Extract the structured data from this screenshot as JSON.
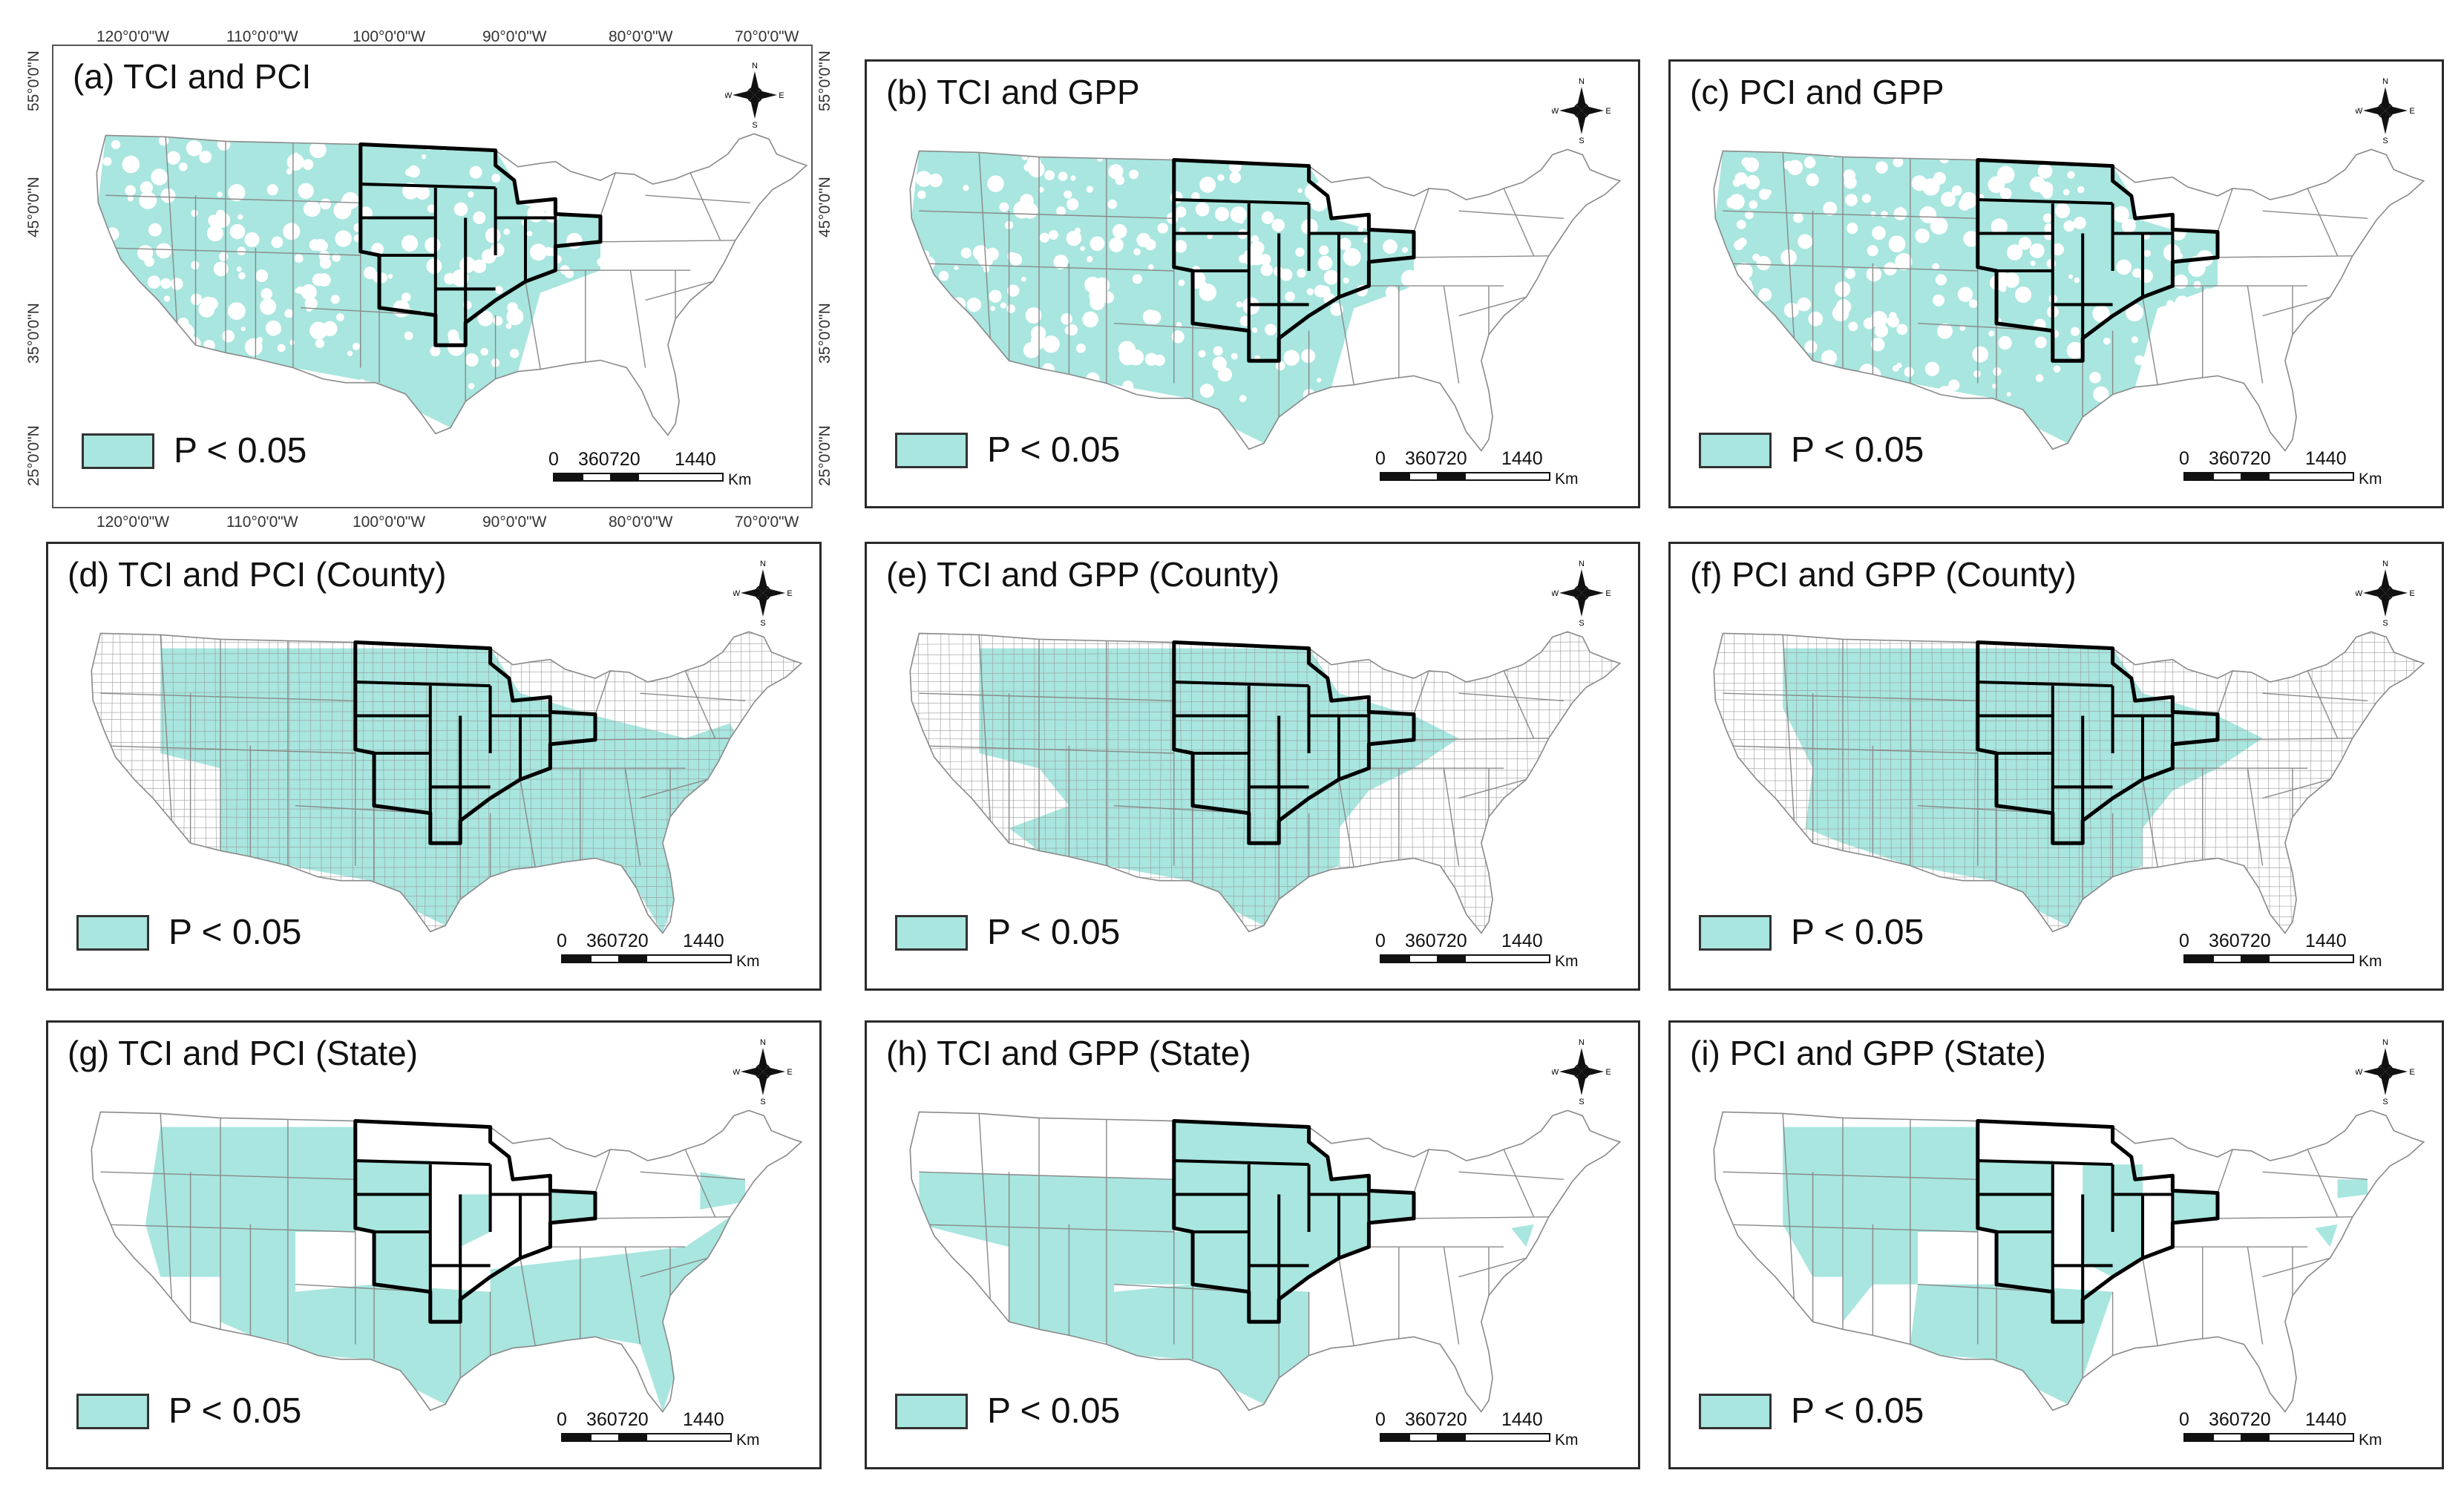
{
  "colors": {
    "significant": "#a8e6df",
    "border": "#2a2a2a",
    "map_bg": "#ffffff",
    "state_line": "#888888",
    "study_region": "#000000"
  },
  "legend_label": "P < 0.05",
  "scale": {
    "labels": [
      "0",
      "360",
      "720",
      "1440"
    ],
    "unit": "Km"
  },
  "compass": {
    "n": "N",
    "s": "S",
    "e": "E",
    "w": "W"
  },
  "axes": {
    "top": [
      "120°0'0\"W",
      "110°0'0\"W",
      "100°0'0\"W",
      "90°0'0\"W",
      "80°0'0\"W",
      "70°0'0\"W"
    ],
    "bottom": [
      "120°0'0\"W",
      "110°0'0\"W",
      "100°0'0\"W",
      "90°0'0\"W",
      "80°0'0\"W",
      "70°0'0\"W"
    ],
    "left": [
      "55°0'0\"N",
      "45°0'0\"N",
      "35°0'0\"N",
      "25°0'0\"N"
    ],
    "right": [
      "55°0'0\"N",
      "45°0'0\"N",
      "35°0'0\"N",
      "25°0'0\"N"
    ]
  },
  "panels": [
    {
      "id": "a",
      "title": "(a) TCI and PCI",
      "level": "pixel"
    },
    {
      "id": "b",
      "title": "(b) TCI and GPP",
      "level": "pixel"
    },
    {
      "id": "c",
      "title": "(c) PCI and GPP",
      "level": "pixel"
    },
    {
      "id": "d",
      "title": "(d) TCI and PCI (County)",
      "level": "county"
    },
    {
      "id": "e",
      "title": "(e) TCI and GPP (County)",
      "level": "county"
    },
    {
      "id": "f",
      "title": "(f) PCI and GPP (County)",
      "level": "county"
    },
    {
      "id": "g",
      "title": "(g) TCI and PCI (State)",
      "level": "state"
    },
    {
      "id": "h",
      "title": "(h) TCI and GPP (State)",
      "level": "state"
    },
    {
      "id": "i",
      "title": "(i) PCI and GPP (State)",
      "level": "state"
    }
  ]
}
